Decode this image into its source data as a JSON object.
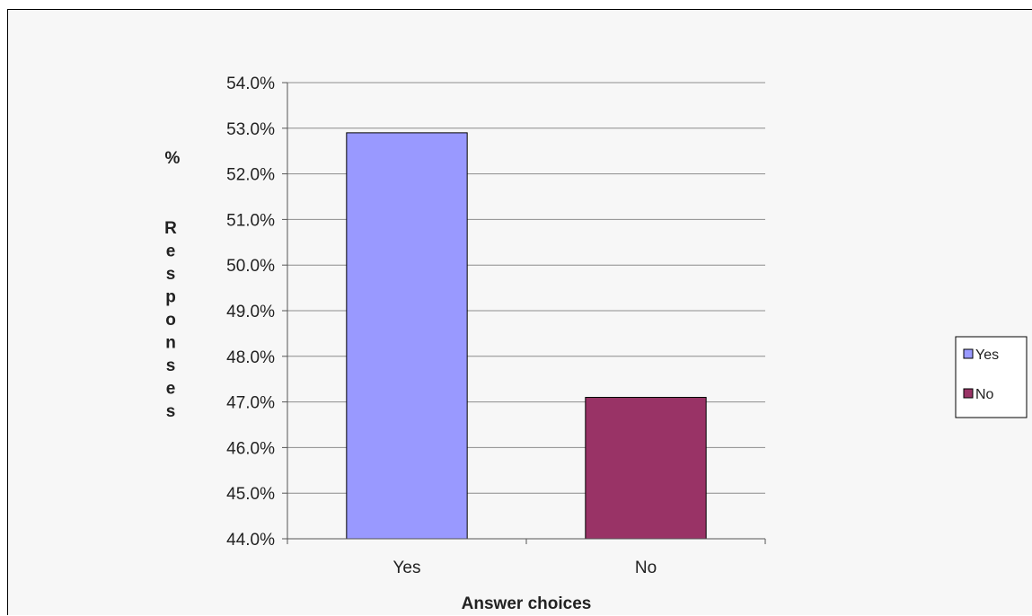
{
  "chart_data": {
    "type": "bar",
    "categories": [
      "Yes",
      "No"
    ],
    "series": [
      {
        "values": [
          52.9,
          47.1
        ]
      }
    ],
    "bar_colors": [
      "#9999ff",
      "#993366"
    ],
    "title": "",
    "xlabel": "Answer choices",
    "ylabel": "% Responses",
    "ylim": [
      44,
      54
    ],
    "y_step": 1,
    "y_tick_labels": [
      "44.0%",
      "45.0%",
      "46.0%",
      "47.0%",
      "48.0%",
      "49.0%",
      "50.0%",
      "51.0%",
      "52.0%",
      "53.0%",
      "54.0%"
    ],
    "grid": true,
    "legend": {
      "placement": "right",
      "entries": [
        {
          "label": "Yes",
          "color": "#9999ff"
        },
        {
          "label": "No",
          "color": "#993366"
        }
      ]
    }
  }
}
